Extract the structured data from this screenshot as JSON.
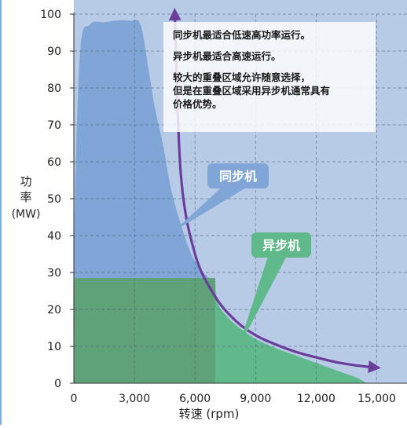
{
  "chart_data": {
    "type": "area",
    "ylabel_line1": "功",
    "ylabel_line2": "率",
    "ylabel_unit": "(MW)",
    "xlabel": "转速 (rpm)",
    "xlim": [
      0,
      16500
    ],
    "ylim": [
      0,
      100
    ],
    "xticks": [
      0,
      3000,
      6000,
      9000,
      12000,
      15000
    ],
    "xtick_labels": [
      "0",
      "3,000",
      "6,000",
      "9,000",
      "12,000",
      "15,000"
    ],
    "yticks": [
      0,
      10,
      20,
      30,
      40,
      50,
      60,
      70,
      80,
      90,
      100
    ],
    "ytick_labels": [
      "0",
      "10",
      "20",
      "30",
      "40",
      "50",
      "60",
      "70",
      "80",
      "90",
      "100"
    ],
    "grid": "dashed",
    "series": [
      {
        "name": "同步机",
        "color": "#7fa6d6",
        "x": [
          0,
          0,
          300,
          800,
          1500,
          2200,
          2800,
          3300,
          3700,
          4000,
          4400,
          4800,
          5300,
          5900,
          6600,
          7000
        ],
        "y": [
          0,
          35,
          89,
          97.2,
          97.8,
          98.3,
          98.2,
          97.2,
          85,
          75,
          65,
          53,
          43,
          34,
          29,
          28
        ]
      },
      {
        "name": "异步机",
        "color": "#5fb98a",
        "x": [
          0,
          0,
          7000,
          7100,
          7600,
          8200,
          9000,
          10000,
          11000,
          12000,
          13000,
          14000,
          14500
        ],
        "y": [
          0,
          28.5,
          28.5,
          22,
          18,
          15,
          12,
          9.5,
          7.5,
          5.5,
          3.5,
          1.5,
          0
        ]
      }
    ],
    "boundary_curve": {
      "color": "#6a3d9a",
      "x": [
        5000,
        5300,
        6000,
        7000,
        8000,
        9000,
        10000,
        11000,
        12000,
        13000,
        14000,
        14900
      ],
      "y": [
        100,
        56.5,
        35,
        23.5,
        17,
        13,
        10.5,
        8.5,
        7,
        5.7,
        4.8,
        4.3
      ]
    },
    "callouts": [
      {
        "label": "同步机",
        "color": "#7fa6d6"
      },
      {
        "label": "异步机",
        "color": "#5fb98a"
      }
    ],
    "notes": [
      "同步机最适合低速高功率运行。",
      "异步机最适合高速运行。",
      "较大的重叠区域允许随意选择，",
      "但是在重叠区域采用异步机通常具有",
      "价格优势。"
    ]
  }
}
